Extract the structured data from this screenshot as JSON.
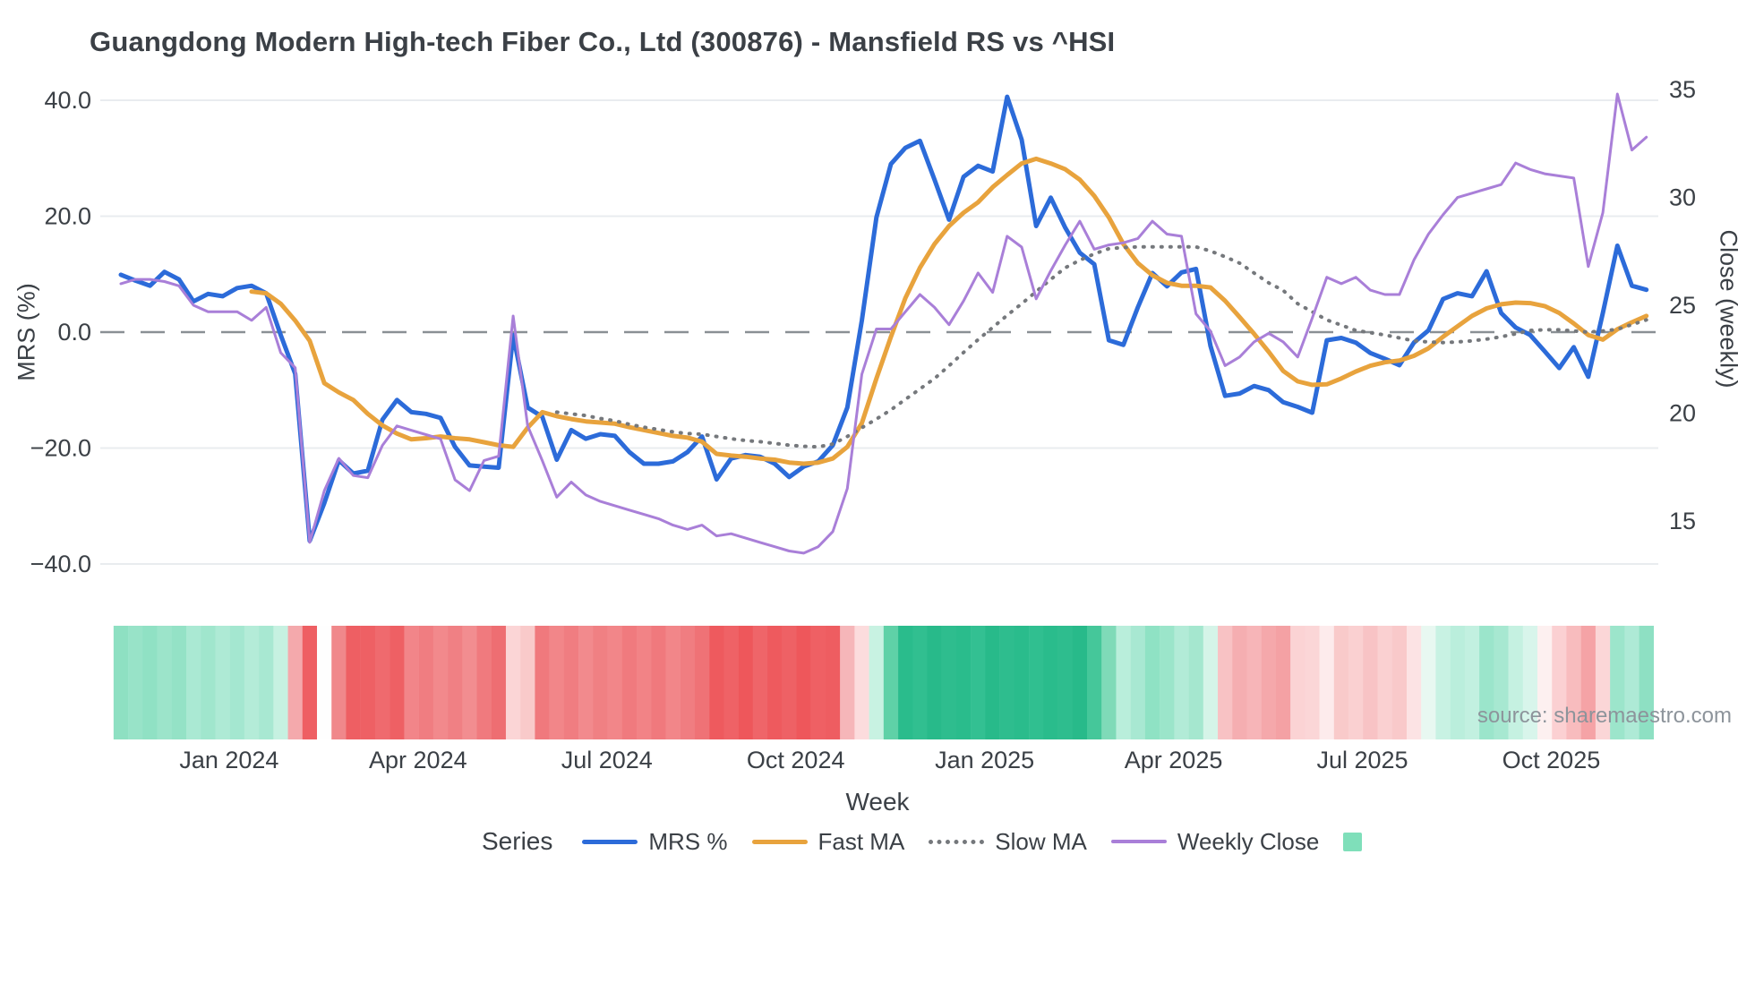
{
  "title": "Guangdong Modern High-tech Fiber Co., Ltd (300876) - Mansfield RS vs ^HSI",
  "source_note": "source: sharemaestro.com",
  "axes": {
    "left": {
      "label": "MRS (%)",
      "tick_labels": [
        "40.0",
        "20.0",
        "0.0",
        "−20.0",
        "−40.0"
      ],
      "tick_values": [
        40,
        20,
        0,
        -20,
        -40
      ]
    },
    "right": {
      "label": "Close (weekly)",
      "tick_labels": [
        "35",
        "30",
        "25",
        "20",
        "15"
      ],
      "tick_values": [
        35,
        30,
        25,
        20,
        15
      ]
    },
    "x": {
      "label": "Week",
      "tick_labels": [
        "Jan 2024",
        "Apr 2024",
        "Jul 2024",
        "Oct 2024",
        "Jan 2025",
        "Apr 2025",
        "Jul 2025",
        "Oct 2025"
      ],
      "tick_week_positions": [
        7.45,
        20.45,
        33.45,
        46.45,
        59.45,
        72.45,
        85.45,
        98.45
      ]
    }
  },
  "legend": {
    "heading": "Series",
    "items": [
      {
        "label": "MRS %",
        "swatch": "solid-line",
        "color": "#2c6bd9"
      },
      {
        "label": "Fast MA",
        "swatch": "solid-line",
        "color": "#e8a33d"
      },
      {
        "label": "Slow MA",
        "swatch": "dotted-line",
        "color": "#75787c"
      },
      {
        "label": "Weekly Close",
        "swatch": "solid-line",
        "color": "#a97fd8"
      },
      {
        "label": "",
        "swatch": "square",
        "color": "#7fdfba"
      }
    ]
  },
  "chart_data": {
    "type": "line",
    "x_unit": "week_index",
    "n_weeks": 106,
    "grid": true,
    "legend_position": "bottom",
    "left_axis_range": [
      -44,
      44
    ],
    "right_axis_range": [
      11.5,
      36.5
    ],
    "zero_line": {
      "axis": "left",
      "value": 0,
      "style": "dashed",
      "color": "#8a9094"
    },
    "series": [
      {
        "name": "MRS %",
        "axis": "left",
        "color": "#2c6bd9",
        "style": "solid",
        "width": 5,
        "values": [
          9.9,
          8.9,
          8.0,
          10.4,
          9.1,
          5.3,
          6.6,
          6.2,
          7.6,
          8.0,
          6.7,
          -0.5,
          -7.2,
          -36.0,
          -29.5,
          -22.1,
          -24.4,
          -23.9,
          -15.1,
          -11.7,
          -13.8,
          -14.1,
          -14.8,
          -19.8,
          -23.0,
          -23.2,
          -23.4,
          -0.5,
          -13.0,
          -14.6,
          -22.0,
          -16.9,
          -18.4,
          -17.6,
          -17.9,
          -20.7,
          -22.7,
          -22.7,
          -22.3,
          -20.7,
          -18.0,
          -25.4,
          -21.8,
          -21.2,
          -21.5,
          -22.7,
          -25.0,
          -23.2,
          -22.3,
          -19.5,
          -13.0,
          2.0,
          19.8,
          29.0,
          31.8,
          33.0,
          26.3,
          19.4,
          26.8,
          28.7,
          27.7,
          40.6,
          33.2,
          18.3,
          23.2,
          18.0,
          13.7,
          11.7,
          -1.4,
          -2.2,
          4.3,
          10.2,
          7.9,
          10.3,
          10.9,
          -2.4,
          -11.0,
          -10.6,
          -9.3,
          -10.0,
          -12.1,
          -12.9,
          -13.9,
          -1.4,
          -1.0,
          -1.8,
          -3.6,
          -4.6,
          -5.7,
          -1.8,
          0.3,
          5.7,
          6.7,
          6.2,
          10.5,
          3.3,
          0.8,
          -0.5,
          -3.3,
          -6.2,
          -2.6,
          -7.7,
          3.3,
          14.9,
          8.0,
          7.3
        ]
      },
      {
        "name": "Fast MA",
        "axis": "left",
        "color": "#e8a33d",
        "style": "solid",
        "width": 5,
        "values": [
          null,
          null,
          null,
          null,
          null,
          null,
          null,
          null,
          null,
          7.0,
          6.7,
          4.9,
          2.0,
          -1.5,
          -8.8,
          -10.4,
          -11.7,
          -14.1,
          -16.1,
          -17.5,
          -18.5,
          -18.3,
          -18.0,
          -18.3,
          -18.5,
          -19.0,
          -19.5,
          -19.8,
          -16.5,
          -13.8,
          -14.5,
          -15.0,
          -15.4,
          -15.6,
          -15.8,
          -16.4,
          -16.9,
          -17.4,
          -17.9,
          -18.2,
          -18.9,
          -21.0,
          -21.3,
          -21.5,
          -21.8,
          -22.0,
          -22.5,
          -22.7,
          -22.5,
          -21.8,
          -19.8,
          -15.7,
          -8.0,
          -0.8,
          5.9,
          11.1,
          15.2,
          18.3,
          20.6,
          22.4,
          25.0,
          27.1,
          29.1,
          29.9,
          29.1,
          28.1,
          26.3,
          23.5,
          19.8,
          15.2,
          11.9,
          9.8,
          8.5,
          8.0,
          8.0,
          7.7,
          5.4,
          2.6,
          -0.3,
          -3.4,
          -6.7,
          -8.5,
          -9.1,
          -9.0,
          -8.0,
          -6.8,
          -5.8,
          -5.2,
          -4.9,
          -4.1,
          -2.8,
          -0.8,
          1.0,
          2.8,
          4.1,
          4.8,
          5.1,
          5.0,
          4.5,
          3.3,
          1.5,
          -0.5,
          -1.3,
          0.5,
          1.7,
          2.8
        ]
      },
      {
        "name": "Slow MA",
        "axis": "left",
        "color": "#75787c",
        "style": "dotted",
        "width": 4,
        "values": [
          null,
          null,
          null,
          null,
          null,
          null,
          null,
          null,
          null,
          null,
          null,
          null,
          null,
          null,
          null,
          null,
          null,
          null,
          null,
          null,
          null,
          null,
          null,
          null,
          null,
          null,
          null,
          null,
          null,
          null,
          -13.8,
          -14.1,
          -14.4,
          -14.9,
          -15.3,
          -15.9,
          -16.4,
          -16.8,
          -17.2,
          -17.5,
          -17.6,
          -18.0,
          -18.4,
          -18.7,
          -18.9,
          -19.2,
          -19.5,
          -19.7,
          -19.8,
          -19.3,
          -18.0,
          -16.5,
          -15.0,
          -13.4,
          -11.6,
          -9.8,
          -8.0,
          -5.8,
          -3.5,
          -1.3,
          0.8,
          2.9,
          4.9,
          7.0,
          9.1,
          11.1,
          12.4,
          13.5,
          14.4,
          14.6,
          14.7,
          14.7,
          14.7,
          14.7,
          14.7,
          14.0,
          13.0,
          11.9,
          10.2,
          8.5,
          7.2,
          4.9,
          3.5,
          2.1,
          1.2,
          0.3,
          -0.1,
          -0.5,
          -1.0,
          -1.5,
          -1.7,
          -1.8,
          -1.7,
          -1.5,
          -1.2,
          -0.8,
          -0.3,
          0.3,
          0.4,
          0.4,
          0.2,
          0.0,
          0.2,
          0.5,
          1.3,
          2.1
        ]
      },
      {
        "name": "Weekly Close",
        "axis": "right",
        "color": "#a97fd8",
        "style": "solid",
        "width": 3,
        "values": [
          26.0,
          26.2,
          26.2,
          26.1,
          25.9,
          25.0,
          24.7,
          24.7,
          24.7,
          24.3,
          24.9,
          22.8,
          22.1,
          14.0,
          16.4,
          17.9,
          17.1,
          17.0,
          18.5,
          19.4,
          19.2,
          19.0,
          18.8,
          16.9,
          16.4,
          17.8,
          18.0,
          24.5,
          19.4,
          17.8,
          16.1,
          16.8,
          16.2,
          15.9,
          15.7,
          15.5,
          15.3,
          15.1,
          14.8,
          14.6,
          14.8,
          14.3,
          14.4,
          14.2,
          14.0,
          13.8,
          13.6,
          13.5,
          13.8,
          14.5,
          16.5,
          21.8,
          23.9,
          23.9,
          24.7,
          25.5,
          24.9,
          24.1,
          25.2,
          26.5,
          25.6,
          28.2,
          27.7,
          25.3,
          26.6,
          27.8,
          28.9,
          27.6,
          27.8,
          27.9,
          28.1,
          28.9,
          28.3,
          28.2,
          24.6,
          23.8,
          22.2,
          22.6,
          23.3,
          23.7,
          23.3,
          22.6,
          24.4,
          26.3,
          26.0,
          26.3,
          25.7,
          25.5,
          25.5,
          27.1,
          28.3,
          29.2,
          30.0,
          30.2,
          30.4,
          30.6,
          31.6,
          31.3,
          31.1,
          31.0,
          30.9,
          26.8,
          29.3,
          34.8,
          32.2,
          32.8
        ]
      }
    ],
    "heatmap": {
      "name": "weekly-change-strip",
      "colors": [
        "#8ee0c2",
        "#98e3c8",
        "#90e1c4",
        "#9ce4ca",
        "#94e2c6",
        "#aae9d3",
        "#a0e6cd",
        "#aeead5",
        "#a4e7d0",
        "#b4ecd8",
        "#a8e8d2",
        "#c6f1e1",
        "#f4a9ac",
        "#ee5f63",
        "#fefefe",
        "#f0888b",
        "#ee5f63",
        "#ee6064",
        "#ef6a6e",
        "#ee6064",
        "#f28589",
        "#f07d81",
        "#f2898c",
        "#f08084",
        "#f28d90",
        "#f07a7e",
        "#ee6e72",
        "#fbd5d6",
        "#f9caca",
        "#f0797d",
        "#f28689",
        "#f07d81",
        "#f28a8d",
        "#f08083",
        "#f28689",
        "#f07a7e",
        "#f28386",
        "#f0797d",
        "#f28689",
        "#f07d81",
        "#ef7276",
        "#ee5a5e",
        "#ef6266",
        "#ee575b",
        "#ef6569",
        "#ee5a5e",
        "#ee6165",
        "#ee575b",
        "#ef6064",
        "#ee5d61",
        "#f6b6b9",
        "#fcdcdd",
        "#c8f2e2",
        "#5fd1a7",
        "#2abc8c",
        "#31bf90",
        "#28ba8a",
        "#2ebd8e",
        "#2abc8c",
        "#33c092",
        "#28ba8a",
        "#2ebd8e",
        "#2abc8c",
        "#30bf90",
        "#2abc8c",
        "#2ebd8e",
        "#28ba8a",
        "#45c79a",
        "#7fdab8",
        "#b9eedb",
        "#a8e8d2",
        "#8fe2c4",
        "#9be5ca",
        "#b2ebd7",
        "#a5e7cf",
        "#d5f4e8",
        "#f8c2c4",
        "#f5aeb1",
        "#f7b5b8",
        "#f5a8ab",
        "#f4a1a4",
        "#fbd3d4",
        "#fbd6d7",
        "#fdebec",
        "#f9caca",
        "#fad0d1",
        "#f8c3c5",
        "#fad0d1",
        "#f9c9ca",
        "#fce3e4",
        "#e8f8f1",
        "#c8f2e3",
        "#baeedc",
        "#c2f0e0",
        "#9be5cb",
        "#a7e8d1",
        "#c5f1e1",
        "#d8f5eb",
        "#fdf0f0",
        "#fbd0d2",
        "#f8bcbe",
        "#f5a3a6",
        "#fbd6d7",
        "#9ce5cb",
        "#aeead6",
        "#8ee0c3"
      ]
    }
  }
}
